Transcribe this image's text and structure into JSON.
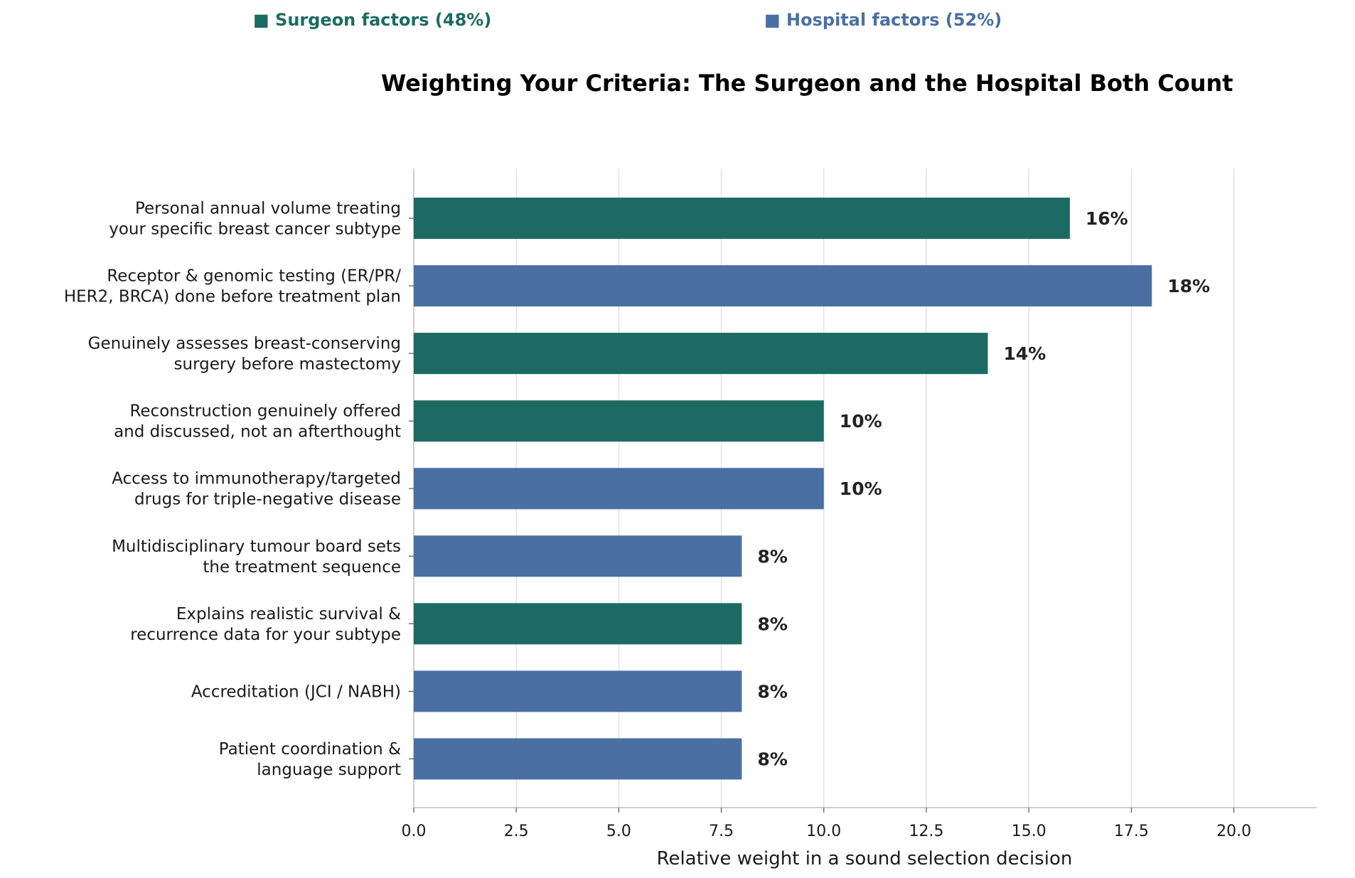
{
  "legend": {
    "surgeon": {
      "label": "■ Surgeon factors (48%)",
      "color": "#1c6b62"
    },
    "hospital": {
      "label": "■ Hospital factors (52%)",
      "color": "#4a6fa3"
    }
  },
  "chart_data": {
    "type": "bar",
    "orientation": "horizontal",
    "title": "Weighting Your Criteria: The Surgeon and the Hospital Both Count",
    "xlabel": "Relative weight in a sound selection decision",
    "ylabel": "",
    "xlim": [
      0,
      22
    ],
    "xticks": [
      "0.0",
      "2.5",
      "5.0",
      "7.5",
      "10.0",
      "12.5",
      "15.0",
      "17.5",
      "20.0"
    ],
    "xtick_values": [
      0,
      2.5,
      5,
      7.5,
      10,
      12.5,
      15,
      17.5,
      20
    ],
    "grid": "vertical",
    "legend_placement": "top",
    "categories": [
      [
        "Personal annual volume treating",
        "your specific breast cancer subtype"
      ],
      [
        "Receptor & genomic testing (ER/PR/",
        "HER2, BRCA) done before treatment plan"
      ],
      [
        "Genuinely assesses breast-conserving",
        "surgery before mastectomy"
      ],
      [
        "Reconstruction genuinely offered",
        "and discussed, not an afterthought"
      ],
      [
        "Access to immunotherapy/targeted",
        "drugs for triple-negative disease"
      ],
      [
        "Multidisciplinary tumour board sets",
        "the treatment sequence"
      ],
      [
        "Explains realistic survival &",
        "recurrence data for your subtype"
      ],
      [
        "Accreditation (JCI / NABH)"
      ],
      [
        "Patient coordination &",
        "language support"
      ]
    ],
    "values": [
      16,
      18,
      14,
      10,
      10,
      8,
      8,
      8,
      8
    ],
    "value_labels": [
      "16%",
      "18%",
      "14%",
      "10%",
      "10%",
      "8%",
      "8%",
      "8%",
      "8%"
    ],
    "groups": [
      "surgeon",
      "hospital",
      "surgeon",
      "surgeon",
      "hospital",
      "hospital",
      "surgeon",
      "hospital",
      "hospital"
    ],
    "colors": {
      "surgeon": "#1c6b62",
      "hospital": "#4a6fa3"
    }
  }
}
